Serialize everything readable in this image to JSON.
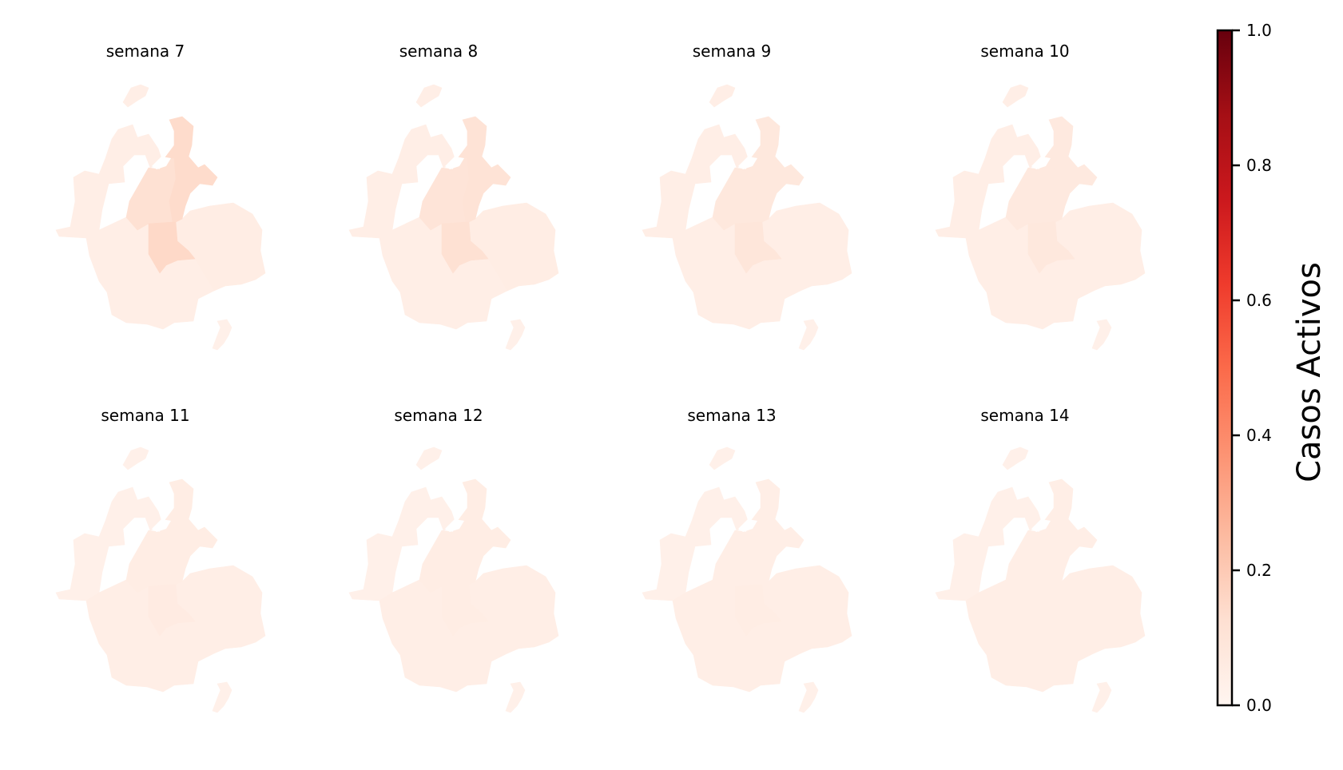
{
  "chart_data": {
    "type": "choropleth-small-multiples",
    "colormap": "Reds",
    "panels": [
      {
        "title": "semana 7",
        "region_values": {
          "west": 0.04,
          "east": 0.05,
          "south": 0.04,
          "island": 0.03,
          "center": 0.12,
          "corridor": 0.14,
          "southcenter": 0.15
        }
      },
      {
        "title": "semana 8",
        "region_values": {
          "west": 0.04,
          "east": 0.05,
          "south": 0.04,
          "island": 0.03,
          "center": 0.1,
          "corridor": 0.11,
          "southcenter": 0.12
        }
      },
      {
        "title": "semana 9",
        "region_values": {
          "west": 0.04,
          "east": 0.04,
          "south": 0.04,
          "island": 0.03,
          "center": 0.08,
          "corridor": 0.08,
          "southcenter": 0.09
        }
      },
      {
        "title": "semana 10",
        "region_values": {
          "west": 0.04,
          "east": 0.04,
          "south": 0.04,
          "island": 0.03,
          "center": 0.07,
          "corridor": 0.07,
          "southcenter": 0.08
        }
      },
      {
        "title": "semana 11",
        "region_values": {
          "west": 0.03,
          "east": 0.04,
          "south": 0.04,
          "island": 0.03,
          "center": 0.05,
          "corridor": 0.05,
          "southcenter": 0.06
        }
      },
      {
        "title": "semana 12",
        "region_values": {
          "west": 0.03,
          "east": 0.04,
          "south": 0.04,
          "island": 0.03,
          "center": 0.05,
          "corridor": 0.05,
          "southcenter": 0.05
        }
      },
      {
        "title": "semana 13",
        "region_values": {
          "west": 0.03,
          "east": 0.04,
          "south": 0.04,
          "island": 0.03,
          "center": 0.04,
          "corridor": 0.04,
          "southcenter": 0.05
        }
      },
      {
        "title": "semana 14",
        "region_values": {
          "west": 0.03,
          "east": 0.04,
          "south": 0.04,
          "island": 0.03,
          "center": 0.04,
          "corridor": 0.04,
          "southcenter": 0.04
        }
      }
    ],
    "colorbar": {
      "label": "Casos Activos",
      "range": [
        0.0,
        1.0
      ],
      "ticks": [
        {
          "value": 0.0,
          "label": "0.0"
        },
        {
          "value": 0.2,
          "label": "0.2"
        },
        {
          "value": 0.4,
          "label": "0.4"
        },
        {
          "value": 0.6,
          "label": "0.6"
        },
        {
          "value": 0.8,
          "label": "0.8"
        },
        {
          "value": 1.0,
          "label": "1.0"
        }
      ]
    }
  }
}
